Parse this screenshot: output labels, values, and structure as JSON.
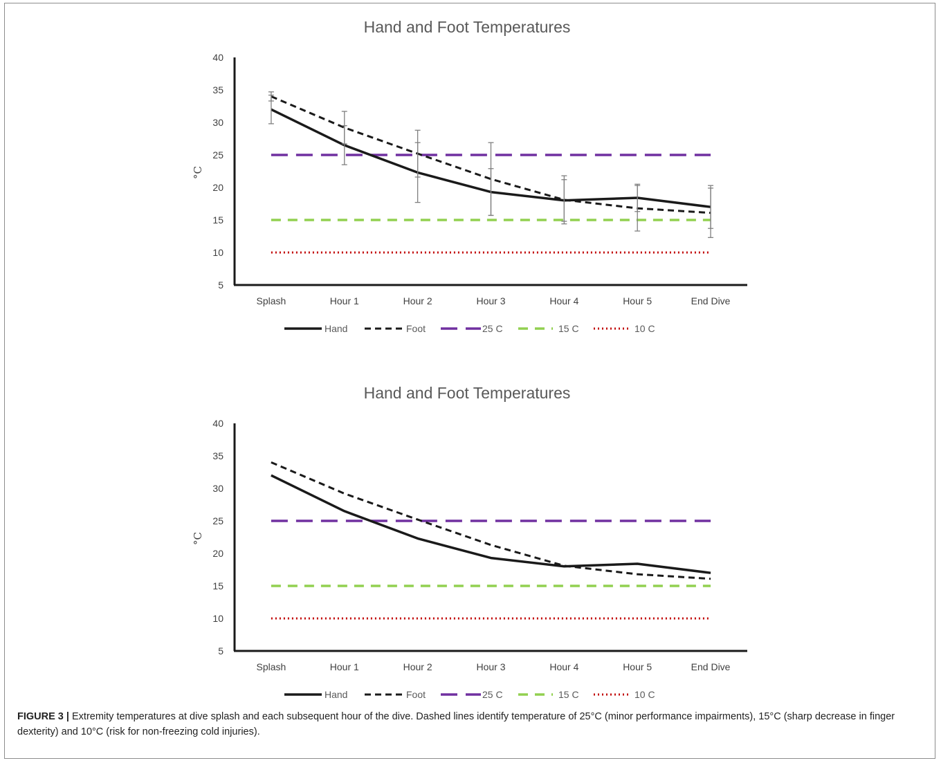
{
  "chart_data": [
    {
      "type": "line",
      "title": "Hand and Foot Temperatures",
      "ylabel": "°C",
      "xlabel": "",
      "categories": [
        "Splash",
        "Hour 1",
        "Hour 2",
        "Hour 3",
        "Hour 4",
        "Hour 5",
        "End Dive"
      ],
      "ylim": [
        5,
        40
      ],
      "yticks": [
        5,
        10,
        15,
        20,
        25,
        30,
        35,
        40
      ],
      "legend_position": "bottom",
      "error_bars": true,
      "series": [
        {
          "name": "Hand",
          "values": [
            32.0,
            26.5,
            22.3,
            19.3,
            18.0,
            18.4,
            17.0
          ],
          "err_low": [
            2.2,
            3.0,
            4.6,
            3.6,
            3.2,
            2.1,
            3.3
          ],
          "err_high": [
            2.2,
            3.0,
            4.6,
            3.6,
            3.2,
            2.1,
            3.3
          ],
          "color": "#1a1a1a",
          "style": "solid"
        },
        {
          "name": "Foot",
          "values": [
            34.0,
            29.2,
            25.2,
            21.3,
            18.1,
            16.8,
            16.1
          ],
          "err_low": [
            0.7,
            2.5,
            3.6,
            5.6,
            3.7,
            3.5,
            3.8
          ],
          "err_high": [
            0.7,
            2.5,
            3.6,
            5.6,
            3.7,
            3.5,
            3.8
          ],
          "color": "#1a1a1a",
          "style": "dashed"
        },
        {
          "name": "25 C",
          "values": [
            25,
            25,
            25,
            25,
            25,
            25,
            25
          ],
          "color": "#7030a0",
          "style": "longdash"
        },
        {
          "name": "15 C",
          "values": [
            15,
            15,
            15,
            15,
            15,
            15,
            15
          ],
          "color": "#92d050",
          "style": "dash"
        },
        {
          "name": "10 C",
          "values": [
            10,
            10,
            10,
            10,
            10,
            10,
            10
          ],
          "color": "#c00000",
          "style": "dotted"
        }
      ]
    },
    {
      "type": "line",
      "title": "Hand and Foot Temperatures",
      "ylabel": "°C",
      "xlabel": "",
      "categories": [
        "Splash",
        "Hour 1",
        "Hour 2",
        "Hour 3",
        "Hour 4",
        "Hour 5",
        "End Dive"
      ],
      "ylim": [
        5,
        40
      ],
      "yticks": [
        5,
        10,
        15,
        20,
        25,
        30,
        35,
        40
      ],
      "legend_position": "bottom",
      "error_bars": false,
      "series": [
        {
          "name": "Hand",
          "values": [
            32.0,
            26.5,
            22.3,
            19.3,
            18.0,
            18.4,
            17.0
          ],
          "color": "#1a1a1a",
          "style": "solid"
        },
        {
          "name": "Foot",
          "values": [
            34.0,
            29.2,
            25.2,
            21.3,
            18.1,
            16.8,
            16.1
          ],
          "color": "#1a1a1a",
          "style": "dashed"
        },
        {
          "name": "25 C",
          "values": [
            25,
            25,
            25,
            25,
            25,
            25,
            25
          ],
          "color": "#7030a0",
          "style": "longdash"
        },
        {
          "name": "15 C",
          "values": [
            15,
            15,
            15,
            15,
            15,
            15,
            15
          ],
          "color": "#92d050",
          "style": "dash"
        },
        {
          "name": "10 C",
          "values": [
            10,
            10,
            10,
            10,
            10,
            10,
            10
          ],
          "color": "#c00000",
          "style": "dotted"
        }
      ]
    }
  ],
  "caption": {
    "label": "FIGURE 3 |",
    "text": " Extremity temperatures at dive splash and each subsequent hour of the dive. Dashed lines identify temperature of 25°C (minor performance impairments), 15°C (sharp decrease in finger dexterity) and 10°C (risk for non-freezing cold injuries)."
  }
}
